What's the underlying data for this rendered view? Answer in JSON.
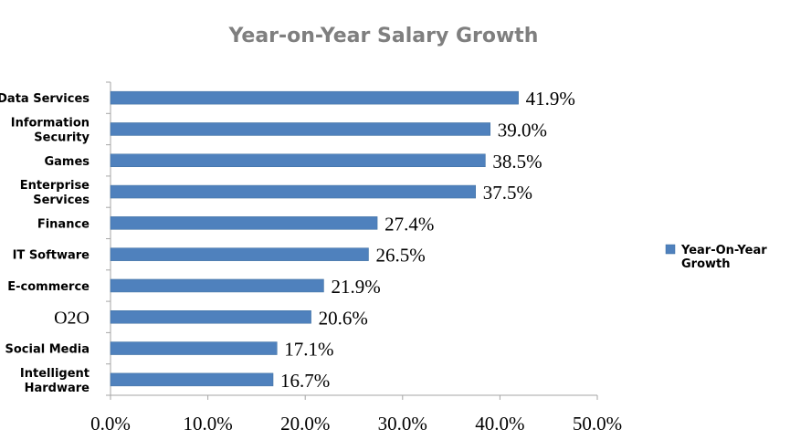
{
  "chart_data": {
    "type": "bar",
    "orientation": "horizontal",
    "title": "Year-on-Year Salary Growth",
    "xlabel": "",
    "ylabel": "",
    "categories": [
      "Data Services",
      "Information Security",
      "Games",
      "Enterprise Services",
      "Finance",
      "IT Software",
      "E-commerce",
      "O2O",
      "Social Media",
      "Intelligent Hardware"
    ],
    "category_lines": [
      [
        "Data Services"
      ],
      [
        "Information",
        "Security"
      ],
      [
        "Games"
      ],
      [
        "Enterprise",
        "Services"
      ],
      [
        "Finance"
      ],
      [
        "IT Software"
      ],
      [
        "E-commerce"
      ],
      [
        "O2O"
      ],
      [
        "Social Media"
      ],
      [
        "Intelligent",
        "Hardware"
      ]
    ],
    "series": [
      {
        "name": "Year-On-Year Growth",
        "values": [
          41.9,
          39.0,
          38.5,
          37.5,
          27.4,
          26.5,
          21.9,
          20.6,
          17.1,
          16.7
        ],
        "labels": [
          "41.9%",
          "39.0%",
          "38.5%",
          "37.5%",
          "27.4%",
          "26.5%",
          "21.9%",
          "20.6%",
          "17.1%",
          "16.7%"
        ]
      }
    ],
    "legend_lines": [
      "Year-On-Year",
      "Growth"
    ],
    "xlim": [
      0,
      50
    ],
    "xticks": [
      0,
      10,
      20,
      30,
      40,
      50
    ],
    "xtick_labels": [
      "0.0%",
      "10.0%",
      "20.0%",
      "30.0%",
      "40.0%",
      "50.0%"
    ],
    "legend_position": "right",
    "grid": false,
    "colors": {
      "bar": "#4f81bd",
      "bar_stroke": "#3f6f9f",
      "title": "#7f7f7f",
      "axis": "#a6a6a6",
      "text": "#000000"
    }
  }
}
